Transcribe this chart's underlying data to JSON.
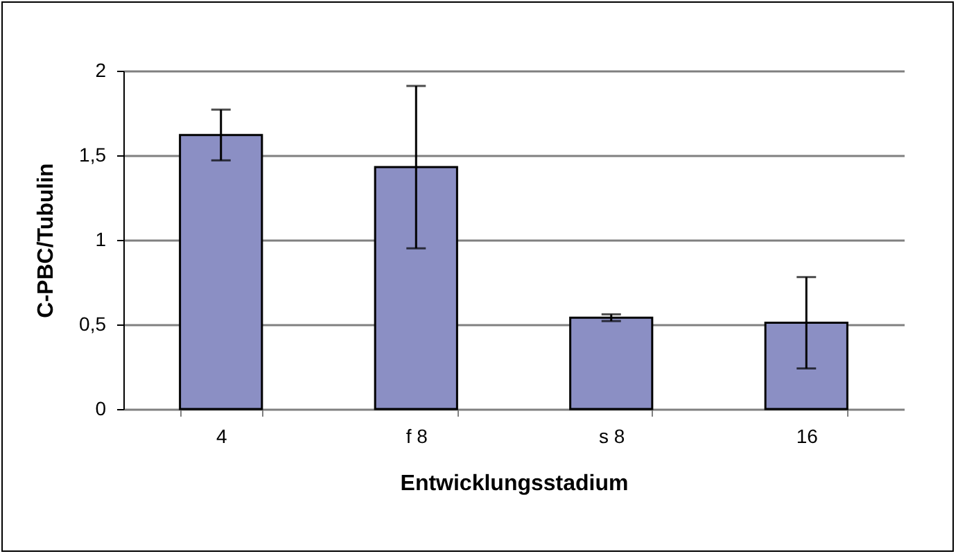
{
  "chart_data": {
    "type": "bar",
    "xlabel": "Entwicklungsstadium",
    "ylabel": "C-PBC/Tubulin",
    "categories": [
      "4",
      "f 8",
      "s 8",
      "16"
    ],
    "values": [
      1.62,
      1.43,
      0.54,
      0.51
    ],
    "errors": [
      0.15,
      0.48,
      0.02,
      0.27
    ],
    "color": "#8b8fc4",
    "ylim": [
      0,
      2
    ],
    "yticks": [
      0,
      {
        "value": 0.5,
        "label": "0,5"
      },
      1,
      {
        "value": 1.5,
        "label": "1,5"
      },
      2
    ],
    "grid": "y"
  }
}
